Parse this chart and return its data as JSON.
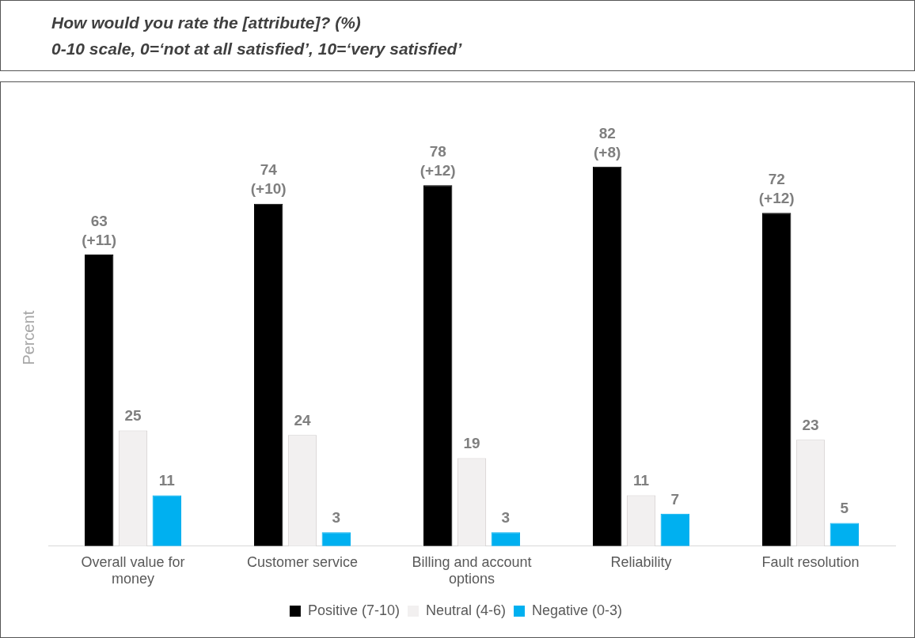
{
  "chart_data": {
    "type": "bar",
    "title": "How would you rate the [attribute]? (%)",
    "subtitle": "0-10 scale, 0=‘not at all satisfied’, 10=‘very satisfied’",
    "ylabel": "Percent",
    "categories": [
      "Overall value for money",
      "Customer service",
      "Billing and account options",
      "Reliability",
      "Fault resolution"
    ],
    "series": [
      {
        "name": "Positive (7-10)",
        "color": "#000000",
        "values": [
          63,
          74,
          78,
          82,
          72
        ],
        "value_labels": [
          "63\n(+11)",
          "74\n(+10)",
          "78\n(+12)",
          "82\n(+8)",
          "72\n(+12)"
        ]
      },
      {
        "name": "Neutral (4-6)",
        "color": "#f2f0f0",
        "values": [
          25,
          24,
          19,
          11,
          23
        ]
      },
      {
        "name": "Negative (0-3)",
        "color": "#00b0f0",
        "values": [
          11,
          3,
          3,
          7,
          5
        ]
      }
    ],
    "data_labels": true,
    "legend": "bottom",
    "grid": false
  }
}
